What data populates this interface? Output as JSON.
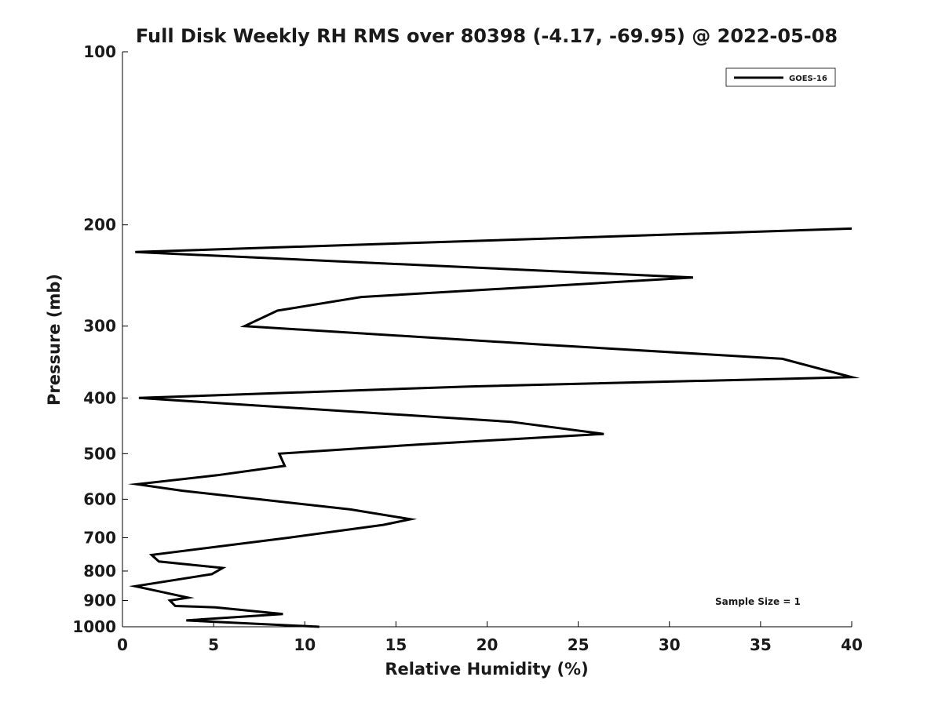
{
  "chart_data": {
    "type": "line",
    "title": "Full Disk Weekly RH RMS over 80398 (-4.17, -69.95) @ 2022-05-08",
    "xlabel": "Relative Humidity (%)",
    "ylabel": "Pressure (mb)",
    "xlim": [
      0,
      40
    ],
    "ylim": [
      100,
      1000
    ],
    "yscale": "log",
    "grid": false,
    "legend_position": "top-right",
    "annotation": "Sample Size = 1",
    "x_ticks": [
      0,
      5,
      10,
      15,
      20,
      25,
      30,
      35,
      40
    ],
    "y_ticks": [
      100,
      200,
      300,
      400,
      500,
      600,
      700,
      800,
      900,
      1000
    ],
    "series": [
      {
        "name": "GOES-16",
        "color": "#000000",
        "points": [
          {
            "x": 10.8,
            "y": 1000
          },
          {
            "x": 3.5,
            "y": 975
          },
          {
            "x": 8.8,
            "y": 950
          },
          {
            "x": 5.1,
            "y": 925
          },
          {
            "x": 2.9,
            "y": 920
          },
          {
            "x": 2.6,
            "y": 900
          },
          {
            "x": 3.6,
            "y": 890
          },
          {
            "x": 1.8,
            "y": 865
          },
          {
            "x": 0.7,
            "y": 850
          },
          {
            "x": 4.9,
            "y": 810
          },
          {
            "x": 5.5,
            "y": 790
          },
          {
            "x": 2.0,
            "y": 770
          },
          {
            "x": 1.6,
            "y": 750
          },
          {
            "x": 9.1,
            "y": 700
          },
          {
            "x": 14.3,
            "y": 665
          },
          {
            "x": 15.8,
            "y": 650
          },
          {
            "x": 12.5,
            "y": 625
          },
          {
            "x": 3.3,
            "y": 580
          },
          {
            "x": 0.8,
            "y": 565
          },
          {
            "x": 5.2,
            "y": 545
          },
          {
            "x": 8.9,
            "y": 525
          },
          {
            "x": 8.6,
            "y": 500
          },
          {
            "x": 16.2,
            "y": 482
          },
          {
            "x": 26.4,
            "y": 462
          },
          {
            "x": 21.3,
            "y": 440
          },
          {
            "x": 0.9,
            "y": 400
          },
          {
            "x": 19.0,
            "y": 382
          },
          {
            "x": 40.0,
            "y": 368
          },
          {
            "x": 36.2,
            "y": 342
          },
          {
            "x": 23.0,
            "y": 323
          },
          {
            "x": 6.7,
            "y": 300
          },
          {
            "x": 8.5,
            "y": 282
          },
          {
            "x": 13.1,
            "y": 267
          },
          {
            "x": 31.3,
            "y": 247
          },
          {
            "x": 0.7,
            "y": 223
          },
          {
            "x": 40.0,
            "y": 203
          }
        ]
      }
    ]
  }
}
